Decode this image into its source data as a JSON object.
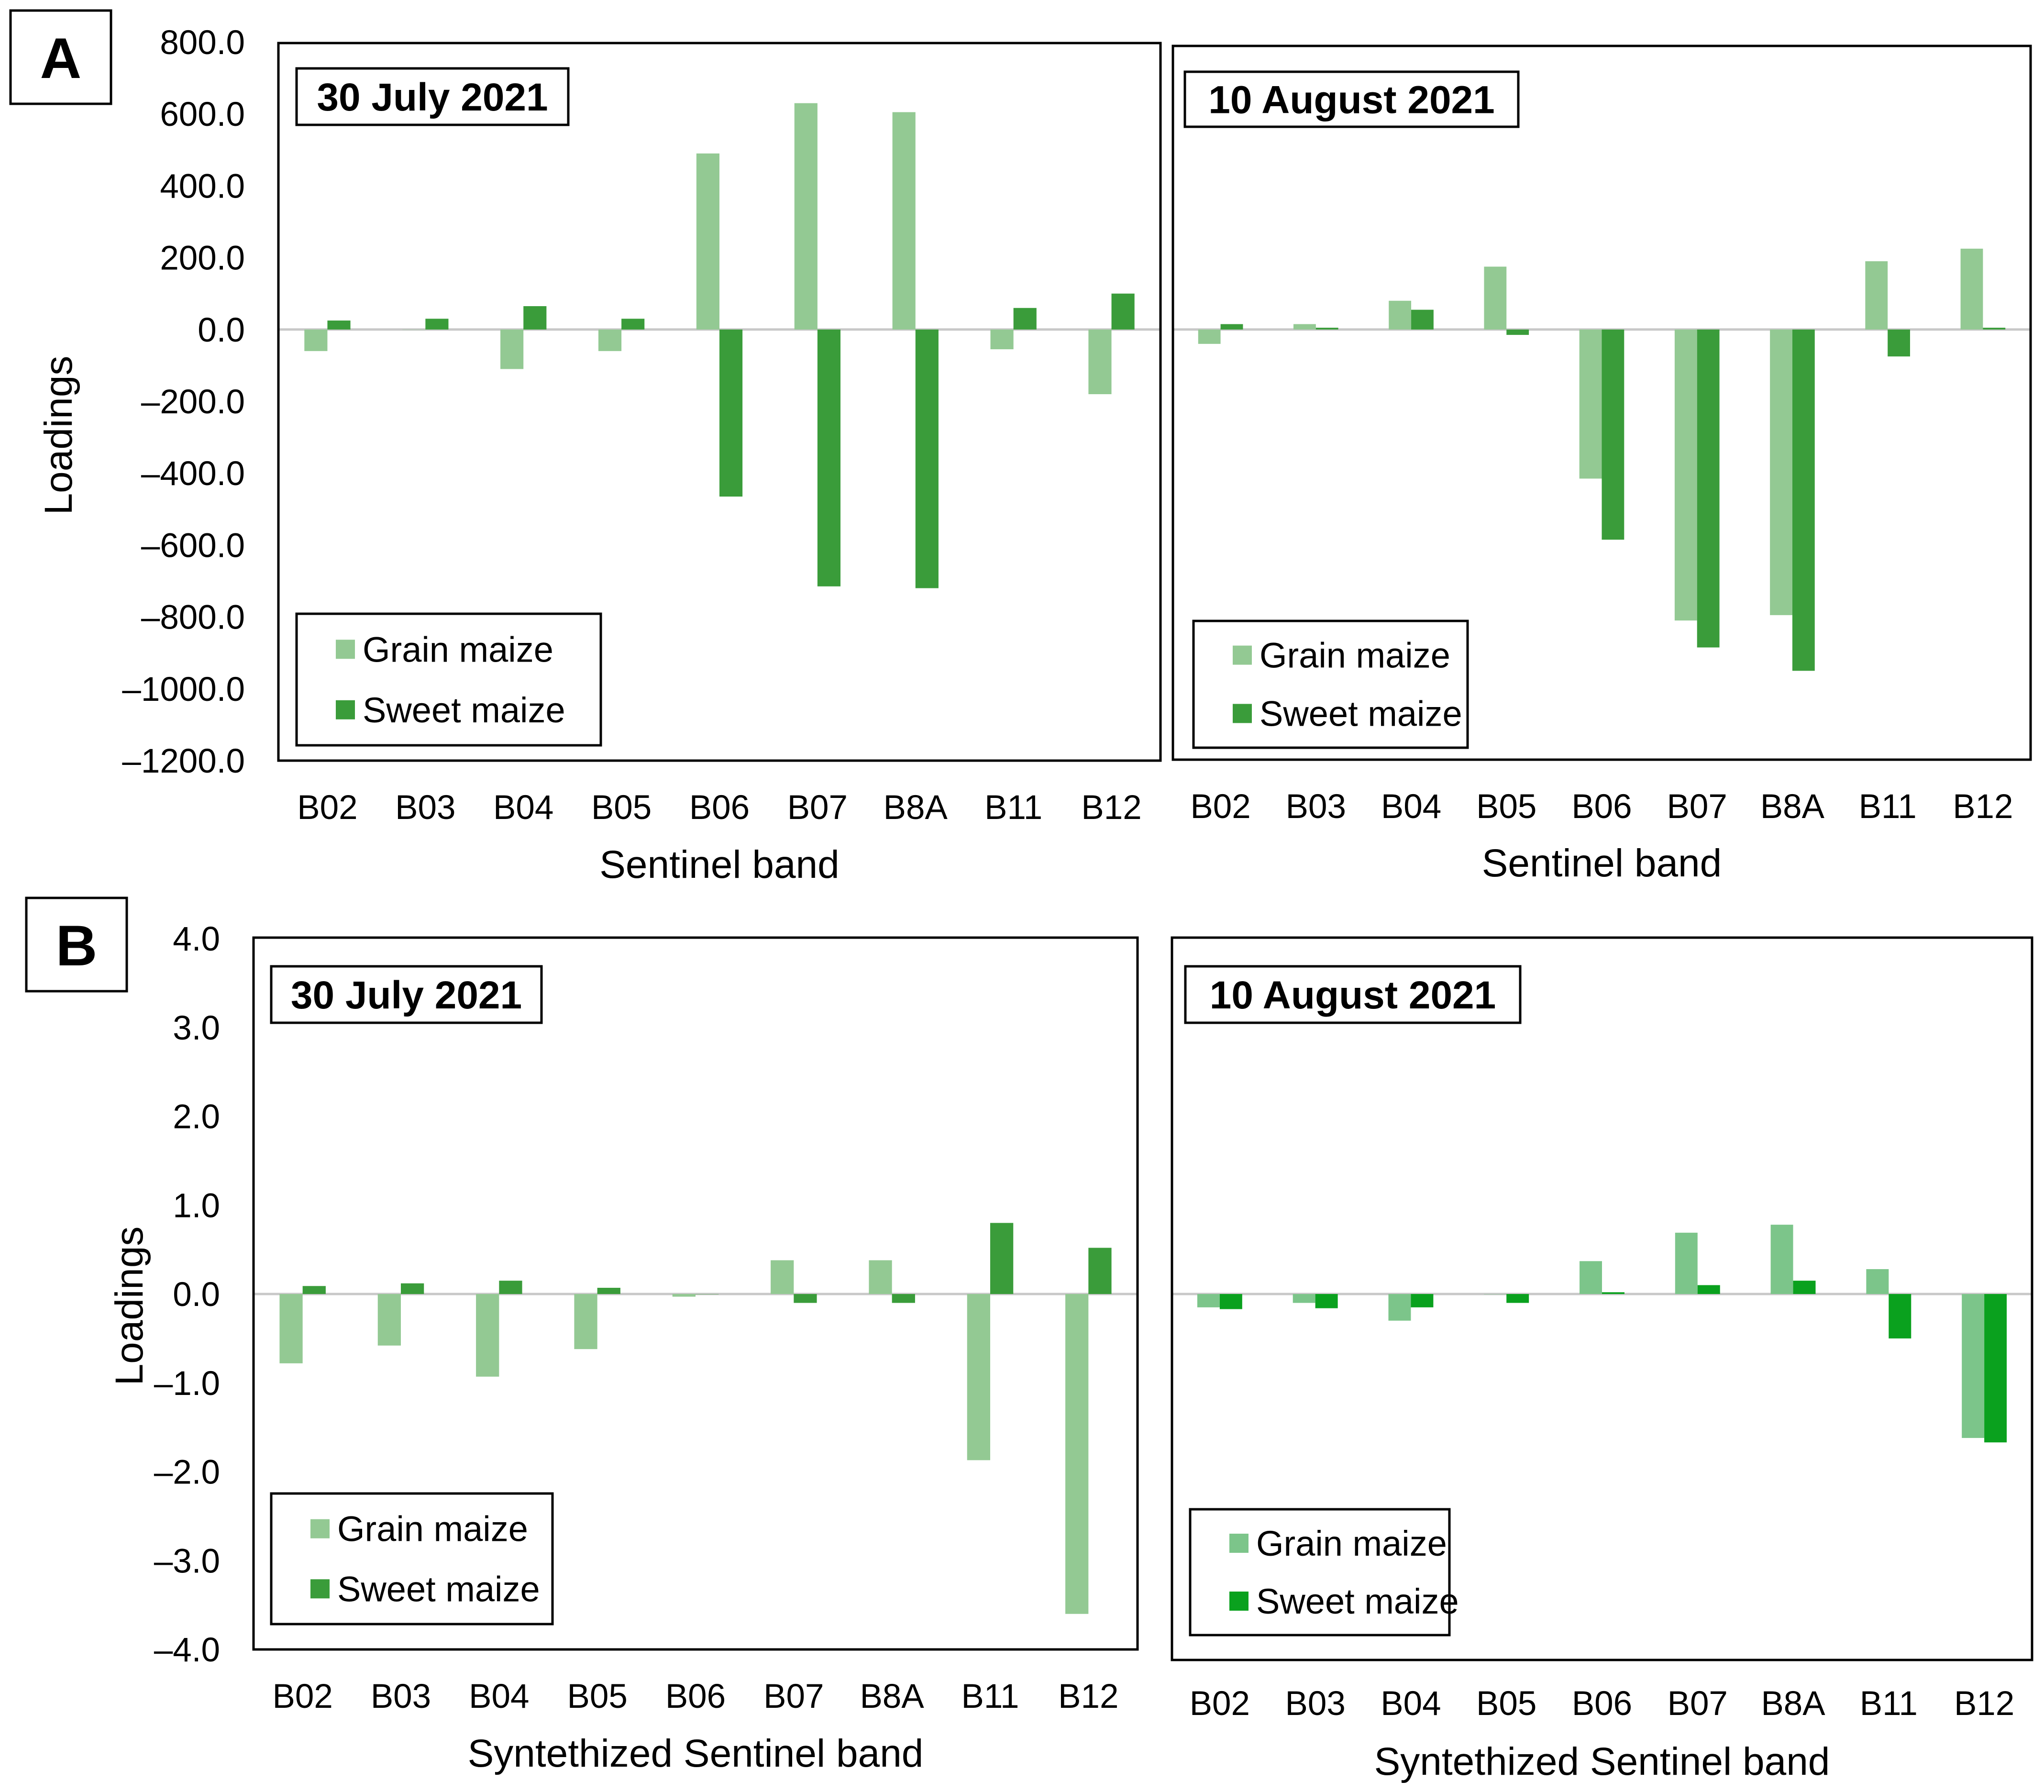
{
  "colors": {
    "grain": "#93c993",
    "sweet": "#3a9c3a",
    "grain_b_aug": "#7cc58a",
    "sweet_b_aug": "#0aa11e"
  },
  "panels": {
    "A": {
      "letter": "A"
    },
    "B": {
      "letter": "B"
    }
  },
  "legend": {
    "grain": "Grain maize",
    "sweet": "Sweet maize"
  },
  "chart_data": [
    {
      "id": "A-july",
      "type": "bar",
      "panel": "A",
      "title": "30 July 2021",
      "xlabel": "Sentinel band",
      "ylabel": "Loadings",
      "ylim": [
        -1200,
        800
      ],
      "yticks": [
        800,
        600,
        400,
        200,
        0,
        -200,
        -400,
        -600,
        -800,
        -1000,
        -1200
      ],
      "ytick_labels": [
        "800.0",
        "600.0",
        "400.0",
        "200.0",
        "0.0",
        "–200.0",
        "–400.0",
        "–600.0",
        "–800.0",
        "–1000.0",
        "–1200.0"
      ],
      "categories": [
        "B02",
        "B03",
        "B04",
        "B05",
        "B06",
        "B07",
        "B8A",
        "B11",
        "B12"
      ],
      "legend_position": "bottom-left",
      "series": [
        {
          "name": "Grain maize",
          "values": [
            -60,
            0,
            -110,
            -60,
            490,
            630,
            605,
            -55,
            -180
          ]
        },
        {
          "name": "Sweet maize",
          "values": [
            25,
            30,
            65,
            30,
            -465,
            -715,
            -720,
            60,
            100
          ]
        }
      ]
    },
    {
      "id": "A-aug",
      "type": "bar",
      "panel": "A",
      "title": "10 August 2021",
      "xlabel": "Sentinel band",
      "ylabel": "",
      "ylim": [
        -1200,
        800
      ],
      "categories": [
        "B02",
        "B03",
        "B04",
        "B05",
        "B06",
        "B07",
        "B8A",
        "B11",
        "B12"
      ],
      "legend_position": "bottom-left",
      "series": [
        {
          "name": "Grain maize",
          "values": [
            -40,
            15,
            80,
            175,
            -415,
            -810,
            -795,
            190,
            225
          ]
        },
        {
          "name": "Sweet maize",
          "values": [
            15,
            5,
            55,
            -15,
            -585,
            -885,
            -950,
            -75,
            5
          ]
        }
      ]
    },
    {
      "id": "B-july",
      "type": "bar",
      "panel": "B",
      "title": "30 July 2021",
      "xlabel": "Syntethized Sentinel band",
      "ylabel": "Loadings",
      "ylim": [
        -4,
        4
      ],
      "yticks": [
        4,
        3,
        2,
        1,
        0,
        -1,
        -2,
        -3,
        -4
      ],
      "ytick_labels": [
        "4.0",
        "3.0",
        "2.0",
        "1.0",
        "0.0",
        "–1.0",
        "–2.0",
        "–3.0",
        "–4.0"
      ],
      "categories": [
        "B02",
        "B03",
        "B04",
        "B05",
        "B06",
        "B07",
        "B8A",
        "B11",
        "B12"
      ],
      "legend_position": "bottom-left",
      "series": [
        {
          "name": "Grain maize",
          "values": [
            -0.78,
            -0.58,
            -0.93,
            -0.62,
            -0.03,
            0.38,
            0.38,
            -1.87,
            -3.6
          ]
        },
        {
          "name": "Sweet maize",
          "values": [
            0.09,
            0.12,
            0.15,
            0.07,
            0,
            -0.1,
            -0.1,
            0.8,
            0.52
          ]
        }
      ]
    },
    {
      "id": "B-aug",
      "type": "bar",
      "panel": "B",
      "title": "10 August 2021",
      "xlabel": "Syntethized Sentinel band",
      "ylabel": "",
      "ylim": [
        -4,
        4
      ],
      "categories": [
        "B02",
        "B03",
        "B04",
        "B05",
        "B06",
        "B07",
        "B8A",
        "B11",
        "B12"
      ],
      "legend_position": "bottom-left",
      "series": [
        {
          "name": "Grain maize",
          "values": [
            -0.15,
            -0.1,
            -0.3,
            0,
            0.37,
            0.69,
            0.78,
            0.28,
            -1.62
          ]
        },
        {
          "name": "Sweet maize",
          "values": [
            -0.17,
            -0.16,
            -0.15,
            -0.1,
            0.02,
            0.1,
            0.15,
            -0.5,
            -1.67
          ]
        }
      ]
    }
  ]
}
